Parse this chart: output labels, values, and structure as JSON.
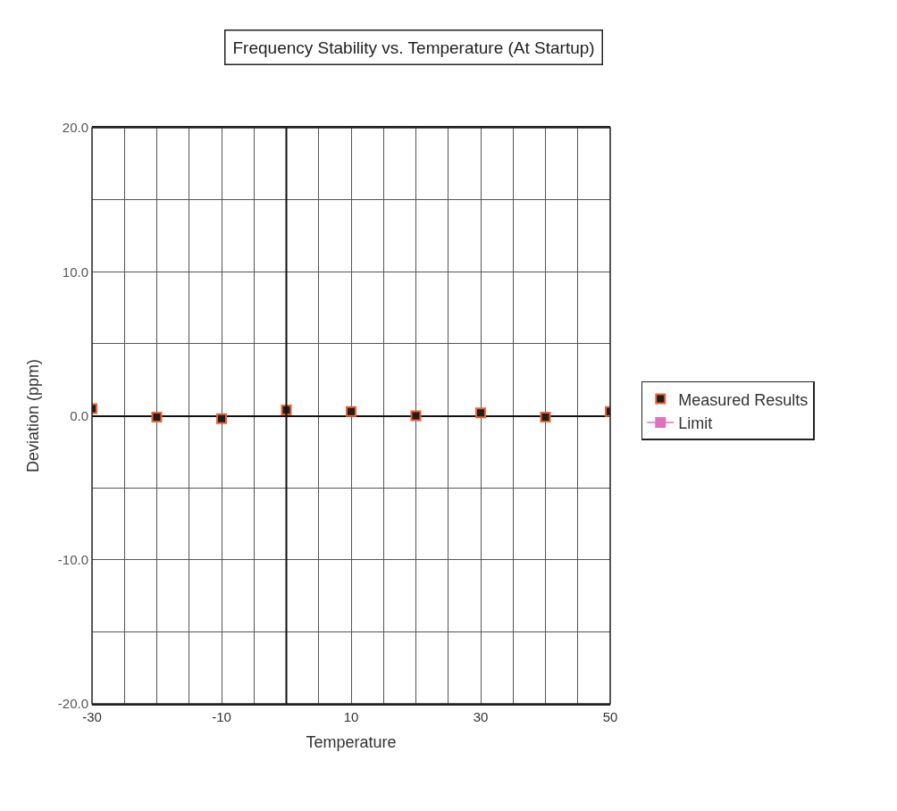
{
  "chart_data": {
    "type": "scatter",
    "title": "Frequency Stability vs. Temperature (At Startup)",
    "xlabel": "Temperature",
    "ylabel": "Deviation (ppm)",
    "x": [
      -30,
      -20,
      -10,
      0,
      10,
      20,
      30,
      40,
      50
    ],
    "series": [
      {
        "name": "Measured Results",
        "color": "#1e1e1e",
        "marker": "square",
        "values": [
          0.5,
          -0.1,
          -0.2,
          0.4,
          0.3,
          0.0,
          0.2,
          -0.1,
          0.3
        ]
      },
      {
        "name": "Limit",
        "color": "#e070c0",
        "type": "line",
        "marker": "square",
        "values": [
          null,
          null,
          null,
          null,
          null,
          null,
          null,
          null,
          null
        ]
      }
    ],
    "xlim": [
      -30,
      50
    ],
    "xticks": [
      -30,
      {
        "value": -25,
        "label": null
      },
      {
        "value": -20,
        "label": null
      },
      {
        "value": -15,
        "label": null
      },
      -10,
      {
        "value": -5,
        "label": null
      },
      {
        "value": 0,
        "label": null
      },
      {
        "value": 5,
        "label": null
      },
      10,
      {
        "value": 15,
        "label": null
      },
      {
        "value": 20,
        "label": null
      },
      {
        "value": 25,
        "label": null
      },
      30,
      {
        "value": 35,
        "label": null
      },
      {
        "value": 40,
        "label": null
      },
      {
        "value": 45,
        "label": null
      },
      50
    ],
    "ylim": [
      -20,
      20
    ],
    "yticks": [
      {
        "value": -20,
        "label": "-20.0"
      },
      {
        "value": -15,
        "label": null
      },
      {
        "value": -10,
        "label": "-10.0"
      },
      {
        "value": -5,
        "label": null
      },
      {
        "value": 0,
        "label": "0.0"
      },
      {
        "value": 5,
        "label": null
      },
      {
        "value": 10,
        "label": "10.0"
      },
      {
        "value": 15,
        "label": null
      },
      {
        "value": 20,
        "label": "20.0"
      }
    ],
    "grid": true,
    "legend": "right"
  }
}
